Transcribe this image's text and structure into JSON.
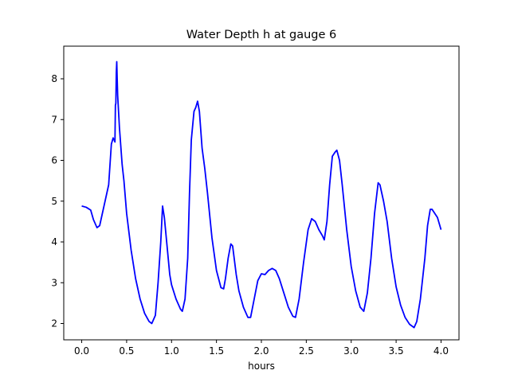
{
  "chart_data": {
    "type": "line",
    "title": "Water Depth h at gauge 6",
    "xlabel": "hours",
    "ylabel": "",
    "xlim": [
      -0.2,
      4.2
    ],
    "ylim": [
      1.6,
      8.8
    ],
    "xticks": [
      0.0,
      0.5,
      1.0,
      1.5,
      2.0,
      2.5,
      3.0,
      3.5,
      4.0
    ],
    "xtick_labels": [
      "0.0",
      "0.5",
      "1.0",
      "1.5",
      "2.0",
      "2.5",
      "3.0",
      "3.5",
      "4.0"
    ],
    "yticks": [
      2,
      3,
      4,
      5,
      6,
      7,
      8
    ],
    "ytick_labels": [
      "2",
      "3",
      "4",
      "5",
      "6",
      "7",
      "8"
    ],
    "grid": false,
    "series": [
      {
        "color": "#0000ff",
        "x": [
          0.0,
          0.05,
          0.1,
          0.13,
          0.17,
          0.2,
          0.23,
          0.27,
          0.3,
          0.33,
          0.35,
          0.37,
          0.375,
          0.38,
          0.385,
          0.39,
          0.395,
          0.4,
          0.42,
          0.45,
          0.47,
          0.5,
          0.55,
          0.6,
          0.65,
          0.7,
          0.75,
          0.78,
          0.8,
          0.82,
          0.85,
          0.88,
          0.9,
          0.92,
          0.95,
          0.98,
          1.0,
          1.05,
          1.1,
          1.12,
          1.15,
          1.18,
          1.2,
          1.22,
          1.25,
          1.27,
          1.29,
          1.31,
          1.34,
          1.37,
          1.4,
          1.45,
          1.5,
          1.55,
          1.58,
          1.6,
          1.63,
          1.66,
          1.68,
          1.72,
          1.75,
          1.8,
          1.85,
          1.88,
          1.92,
          1.96,
          2.0,
          2.04,
          2.08,
          2.12,
          2.16,
          2.2,
          2.25,
          2.3,
          2.35,
          2.38,
          2.42,
          2.47,
          2.52,
          2.56,
          2.6,
          2.64,
          2.68,
          2.7,
          2.73,
          2.76,
          2.79,
          2.82,
          2.84,
          2.87,
          2.9,
          2.95,
          3.0,
          3.05,
          3.1,
          3.14,
          3.18,
          3.22,
          3.26,
          3.3,
          3.32,
          3.36,
          3.4,
          3.45,
          3.5,
          3.55,
          3.6,
          3.65,
          3.7,
          3.73,
          3.77,
          3.82,
          3.85,
          3.88,
          3.9,
          3.93,
          3.96,
          4.0
        ],
        "y": [
          4.88,
          4.85,
          4.78,
          4.55,
          4.35,
          4.4,
          4.7,
          5.1,
          5.4,
          6.4,
          6.55,
          6.45,
          7.35,
          7.4,
          8.15,
          8.42,
          8.0,
          7.6,
          6.8,
          5.9,
          5.5,
          4.7,
          3.8,
          3.1,
          2.6,
          2.25,
          2.05,
          2.0,
          2.1,
          2.2,
          3.0,
          4.0,
          4.88,
          4.6,
          3.9,
          3.2,
          2.95,
          2.6,
          2.35,
          2.3,
          2.6,
          3.6,
          5.2,
          6.5,
          7.2,
          7.3,
          7.45,
          7.2,
          6.3,
          5.8,
          5.2,
          4.1,
          3.3,
          2.88,
          2.85,
          3.1,
          3.6,
          3.95,
          3.9,
          3.2,
          2.8,
          2.4,
          2.15,
          2.15,
          2.6,
          3.05,
          3.22,
          3.2,
          3.3,
          3.35,
          3.3,
          3.1,
          2.75,
          2.4,
          2.18,
          2.15,
          2.6,
          3.5,
          4.3,
          4.57,
          4.5,
          4.3,
          4.15,
          4.05,
          4.5,
          5.4,
          6.1,
          6.2,
          6.25,
          6.0,
          5.4,
          4.3,
          3.4,
          2.8,
          2.4,
          2.3,
          2.75,
          3.6,
          4.7,
          5.45,
          5.4,
          5.0,
          4.5,
          3.6,
          2.9,
          2.45,
          2.15,
          1.98,
          1.9,
          2.05,
          2.6,
          3.6,
          4.4,
          4.8,
          4.8,
          4.7,
          4.6,
          4.3
        ]
      }
    ]
  }
}
